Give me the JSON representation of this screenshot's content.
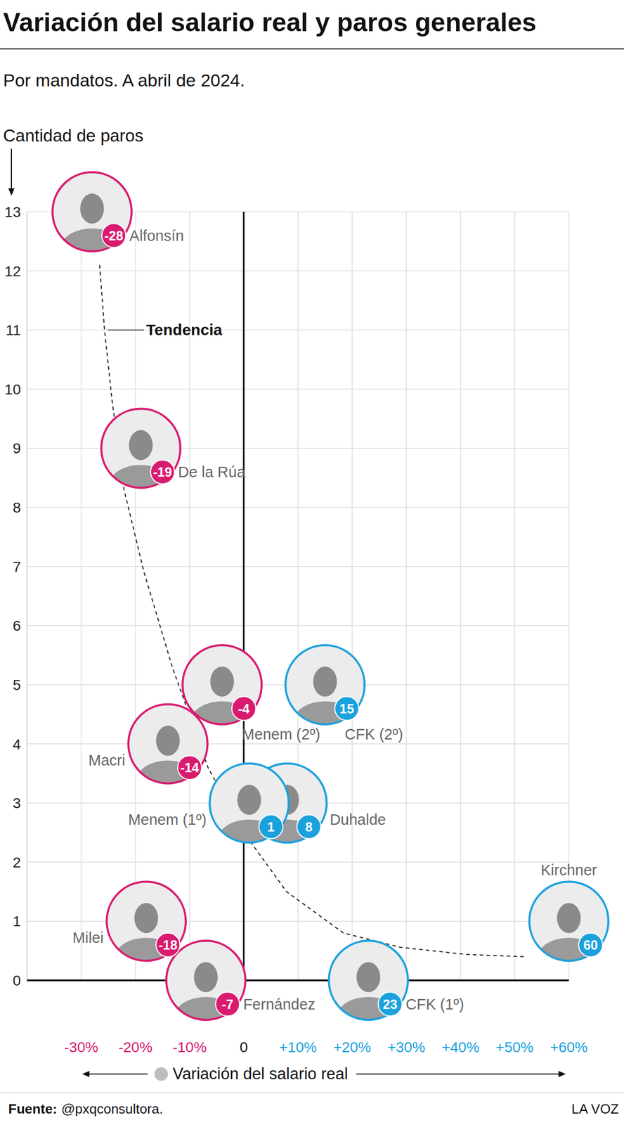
{
  "chart_data": {
    "type": "scatter",
    "title": "Variación del salario real y paros generales",
    "subtitle": "Por mandatos. A abril de 2024.",
    "y_label": "Cantidad de paros",
    "x_label": "Variación del salario real",
    "source_label": "Fuente:",
    "source": "@pxqconsultora.",
    "publisher": "LA VOZ",
    "xlim": [
      -40,
      60
    ],
    "xticks": [
      {
        "value": -30,
        "label": "-30%"
      },
      {
        "value": -20,
        "label": "-20%"
      },
      {
        "value": -10,
        "label": "-10%"
      },
      0,
      {
        "value": 10,
        "label": "+10%"
      },
      {
        "value": 20,
        "label": "+20%"
      },
      {
        "value": 30,
        "label": "+30%"
      },
      {
        "value": 40,
        "label": "+40%"
      },
      {
        "value": 50,
        "label": "+50%"
      },
      {
        "value": 60,
        "label": "+60%"
      }
    ],
    "ylim": [
      0,
      13
    ],
    "yticks": [
      0,
      1,
      2,
      3,
      4,
      5,
      6,
      7,
      8,
      9,
      10,
      11,
      12,
      13
    ],
    "grid": true,
    "data_labels": true,
    "series": [
      {
        "type": "scatter",
        "marker": "circle",
        "labels": [
          "Alfonsín",
          "De la Rúa",
          "Menem (2º)",
          "CFK (2º)",
          "Macri",
          "Duhalde",
          "Menem (1º)",
          "Milei",
          "Fernández",
          "CFK (1º)",
          "Kirchner"
        ],
        "x": [
          -28,
          -19,
          -4,
          15,
          -14,
          8,
          1,
          -18,
          -7,
          23,
          60
        ],
        "values": [
          13,
          9,
          5,
          5,
          4,
          3,
          3,
          1,
          0,
          0,
          1
        ],
        "colors": [
          "#d81b6f",
          "#d81b6f",
          "#d81b6f",
          "#1ba1dc",
          "#d81b6f",
          "#1ba1dc",
          "#1ba1dc",
          "#d81b6f",
          "#d81b6f",
          "#1ba1dc",
          "#1ba1dc"
        ]
      },
      {
        "name": "Tendencia",
        "type": "line",
        "line_style": "dashed",
        "color": "#222222",
        "x": [
          -26.6,
          -25.7,
          -24.3,
          -22.1,
          -18.4,
          -13.2,
          -6.6,
          0,
          7.9,
          18.4,
          28.9,
          40.8,
          51.7
        ],
        "values": [
          12.1,
          11,
          9.8,
          8.3,
          6.9,
          5.3,
          3.6,
          2.5,
          1.5,
          0.8,
          0.56,
          0.44,
          0.4
        ]
      }
    ]
  }
}
